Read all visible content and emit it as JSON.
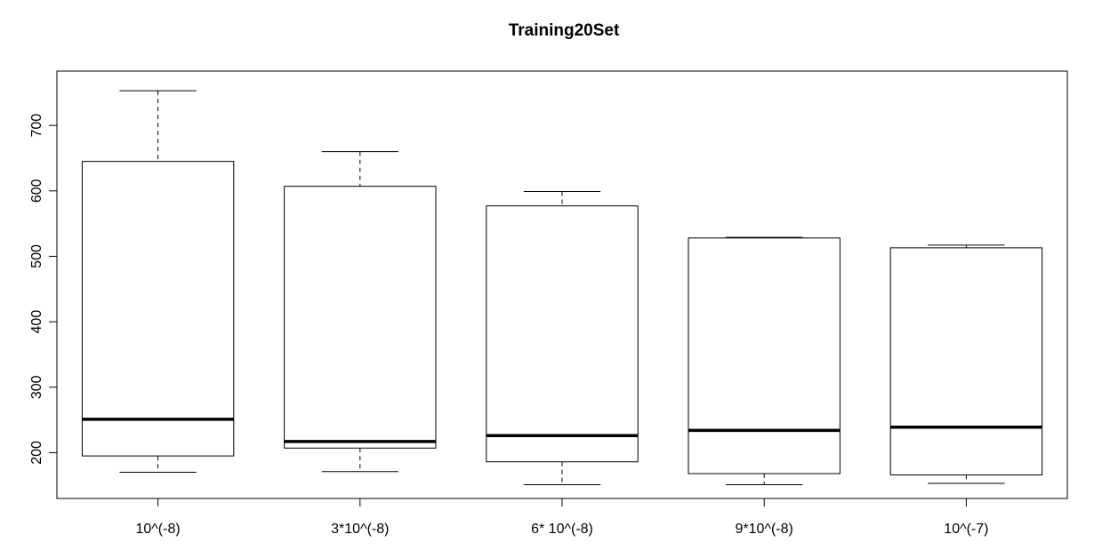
{
  "chart_data": {
    "type": "boxplot",
    "title": "Training20Set",
    "xlabel": "",
    "ylabel": "",
    "ylim": [
      130,
      783
    ],
    "yticks": [
      200,
      300,
      400,
      500,
      600,
      700
    ],
    "grid": false,
    "categories": [
      "10^(-8)",
      "3*10^(-8)",
      "6* 10^(-8)",
      "9*10^(-8)",
      "10^(-7)"
    ],
    "boxes": [
      {
        "min": 170,
        "q1": 195,
        "median": 251,
        "q3": 645,
        "max": 753
      },
      {
        "min": 171,
        "q1": 207,
        "median": 217,
        "q3": 607,
        "max": 660
      },
      {
        "min": 151,
        "q1": 186,
        "median": 226,
        "q3": 577,
        "max": 599
      },
      {
        "min": 151,
        "q1": 168,
        "median": 234,
        "q3": 528,
        "max": 529
      },
      {
        "min": 153,
        "q1": 166,
        "median": 239,
        "q3": 513,
        "max": 517
      }
    ]
  }
}
